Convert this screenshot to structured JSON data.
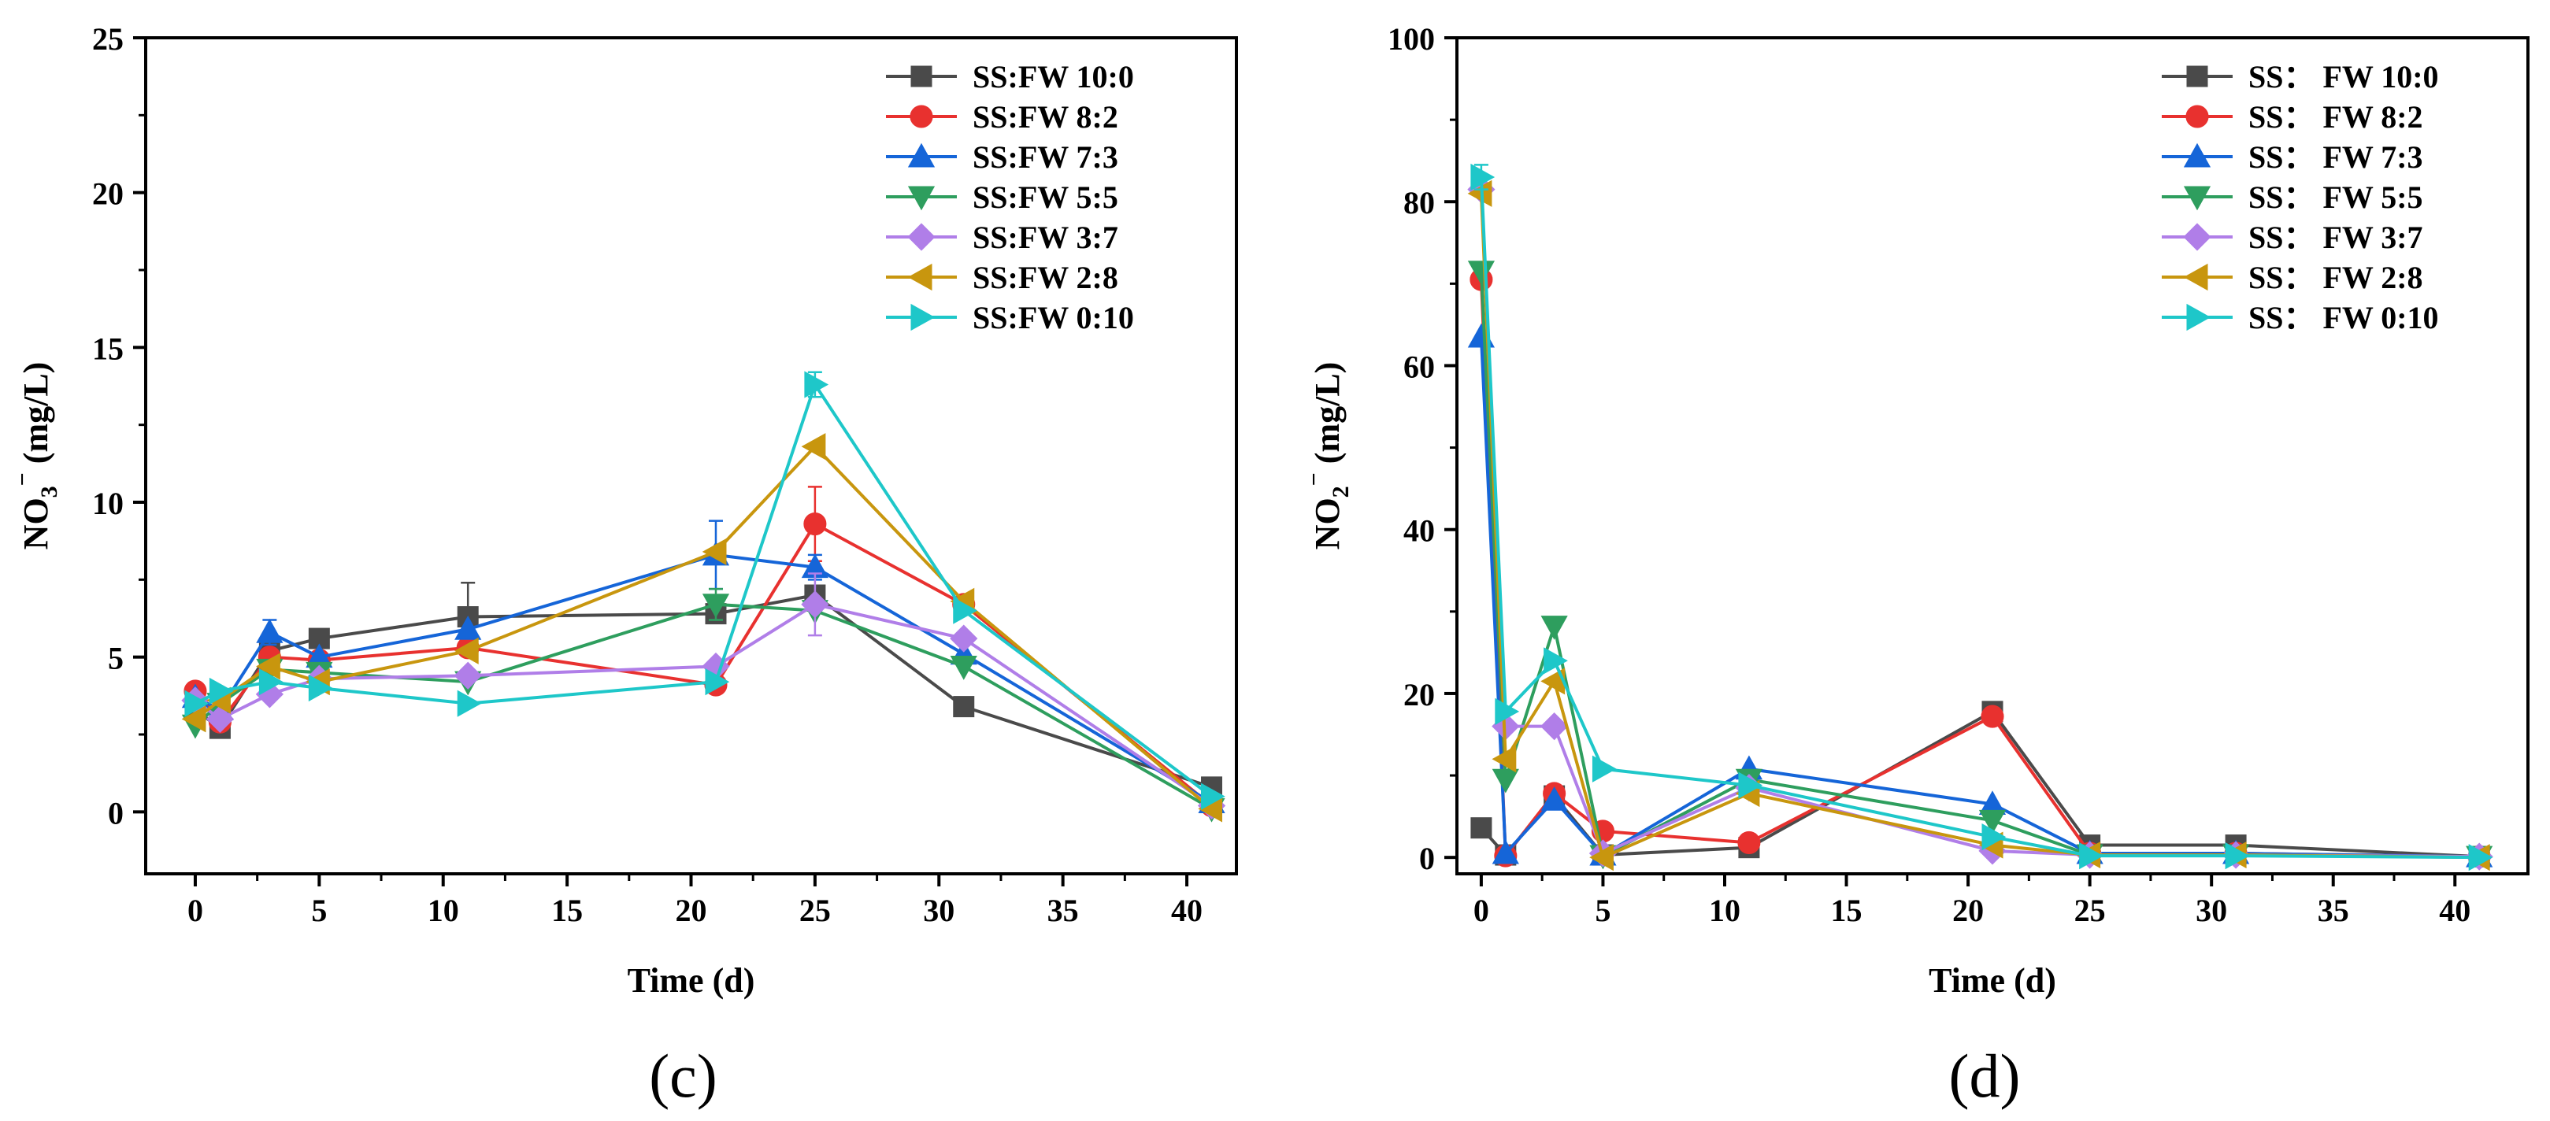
{
  "panels": [
    {
      "caption": "(c)",
      "chart_data": {
        "type": "line",
        "xlabel": "Time (d)",
        "ylabel_main": "NO",
        "ylabel_sub": "3",
        "ylabel_sup": "−",
        "ylabel_unit": " (mg/L)",
        "xlim": [
          -2,
          42
        ],
        "ylim": [
          -2,
          25
        ],
        "xticks": [
          0,
          5,
          10,
          15,
          20,
          25,
          30,
          35,
          40
        ],
        "yticks": [
          0,
          5,
          10,
          15,
          20,
          25
        ],
        "x": [
          0,
          1,
          3,
          5,
          11,
          21,
          25,
          31,
          41
        ],
        "legend_position": "top-right",
        "series": [
          {
            "name": "SS:FW 10:0",
            "color": "#4a4a4a",
            "marker": "square",
            "values": [
              3.3,
              2.7,
              5.2,
              5.6,
              6.3,
              6.4,
              7.0,
              3.4,
              0.8
            ],
            "err": [
              0,
              0,
              0,
              0,
              1.1,
              0,
              0.2,
              0,
              0
            ]
          },
          {
            "name": "SS:FW 8:2",
            "color": "#e8312f",
            "marker": "circle",
            "values": [
              3.9,
              2.9,
              5.0,
              4.9,
              5.3,
              4.1,
              9.3,
              6.7,
              0.2
            ],
            "err": [
              0,
              0,
              0,
              0,
              0,
              0,
              1.2,
              0,
              0
            ]
          },
          {
            "name": "SS:FW 7:3",
            "color": "#1565d8",
            "marker": "triangle-up",
            "values": [
              3.7,
              3.3,
              5.8,
              5.0,
              5.9,
              8.3,
              7.9,
              5.1,
              0.3
            ],
            "err": [
              0,
              0,
              0.4,
              0,
              0,
              1.1,
              0.4,
              0,
              0
            ]
          },
          {
            "name": "SS:FW 5:5",
            "color": "#2e9e5e",
            "marker": "triangle-down",
            "values": [
              2.8,
              3.5,
              4.6,
              4.5,
              4.2,
              6.7,
              6.5,
              4.7,
              0.1
            ],
            "err": [
              0,
              0,
              0,
              0,
              0,
              0.5,
              0,
              0,
              0
            ]
          },
          {
            "name": "SS:FW 3:7",
            "color": "#b07ee8",
            "marker": "diamond",
            "values": [
              3.6,
              3.0,
              3.8,
              4.3,
              4.4,
              4.7,
              6.7,
              5.6,
              0.2
            ],
            "err": [
              0,
              0,
              0,
              0,
              0,
              0,
              1.0,
              0,
              0
            ]
          },
          {
            "name": "SS:FW 2:8",
            "color": "#c8960e",
            "marker": "triangle-left",
            "values": [
              3.0,
              3.6,
              4.7,
              4.2,
              5.2,
              8.4,
              11.8,
              6.8,
              0.1
            ],
            "err": [
              0,
              0,
              0,
              0,
              0,
              0,
              0,
              0,
              0
            ]
          },
          {
            "name": "SS:FW 0:10",
            "color": "#1ec7c9",
            "marker": "triangle-right",
            "values": [
              3.5,
              3.9,
              4.2,
              4.0,
              3.5,
              4.2,
              13.8,
              6.5,
              0.5
            ],
            "err": [
              0,
              0,
              0,
              0,
              0,
              0,
              0.4,
              0,
              0
            ]
          }
        ]
      }
    },
    {
      "caption": "(d)",
      "chart_data": {
        "type": "line",
        "xlabel": "Time (d)",
        "ylabel_main": "NO",
        "ylabel_sub": "2",
        "ylabel_sup": "−",
        "ylabel_unit": " (mg/L)",
        "xlim": [
          -1,
          43
        ],
        "ylim": [
          -2,
          100
        ],
        "xticks": [
          0,
          5,
          10,
          15,
          20,
          25,
          30,
          35,
          40
        ],
        "yticks": [
          0,
          20,
          40,
          60,
          80,
          100
        ],
        "x": [
          0,
          1,
          3,
          5,
          11,
          21,
          25,
          31,
          41
        ],
        "legend_position": "top-right",
        "series": [
          {
            "name": "SS： FW 10:0",
            "color": "#4a4a4a",
            "marker": "square",
            "values": [
              3.6,
              0.3,
              7.5,
              0.3,
              1.2,
              17.8,
              1.5,
              1.5,
              0.1
            ],
            "err": [
              0,
              0,
              0,
              0,
              0,
              0,
              0,
              0,
              0
            ]
          },
          {
            "name": "SS： FW 8:2",
            "color": "#e8312f",
            "marker": "circle",
            "values": [
              70.5,
              0.2,
              7.8,
              3.2,
              1.8,
              17.2,
              0.5,
              0.5,
              0.1
            ],
            "err": [
              0,
              0,
              0,
              0,
              0,
              0,
              0,
              0,
              0
            ]
          },
          {
            "name": "SS： FW 7:3",
            "color": "#1565d8",
            "marker": "triangle-up",
            "values": [
              63.5,
              0.5,
              7.0,
              0.3,
              10.8,
              6.5,
              0.5,
              0.5,
              0.1
            ],
            "err": [
              0,
              0,
              0,
              0,
              0,
              0,
              0,
              0,
              0
            ]
          },
          {
            "name": "SS： FW 5:5",
            "color": "#2e9e5e",
            "marker": "triangle-down",
            "values": [
              71.5,
              9.5,
              28.2,
              0.2,
              9.5,
              4.5,
              0.3,
              0.3,
              0.1
            ],
            "err": [
              0,
              0,
              0,
              0,
              0,
              0,
              0,
              0,
              0
            ]
          },
          {
            "name": "SS： FW 3:7",
            "color": "#b07ee8",
            "marker": "diamond",
            "values": [
              81.5,
              16.0,
              16.0,
              0.5,
              8.5,
              0.8,
              0.3,
              0.3,
              0.1
            ],
            "err": [
              0,
              0,
              0,
              0,
              0,
              0,
              0,
              0,
              0
            ]
          },
          {
            "name": "SS： FW 2:8",
            "color": "#c8960e",
            "marker": "triangle-left",
            "values": [
              81.0,
              12.0,
              21.5,
              0.0,
              7.8,
              1.5,
              0.3,
              0.3,
              0.0
            ],
            "err": [
              0,
              0,
              0,
              0,
              0,
              0,
              0,
              0,
              0
            ]
          },
          {
            "name": "SS： FW 0:10",
            "color": "#1ec7c9",
            "marker": "triangle-right",
            "values": [
              83.0,
              17.8,
              24.0,
              10.8,
              8.8,
              2.5,
              0.2,
              0.2,
              0.0
            ],
            "err": [
              1.5,
              0,
              0,
              0,
              0,
              0,
              0,
              0,
              0
            ]
          }
        ]
      }
    }
  ]
}
